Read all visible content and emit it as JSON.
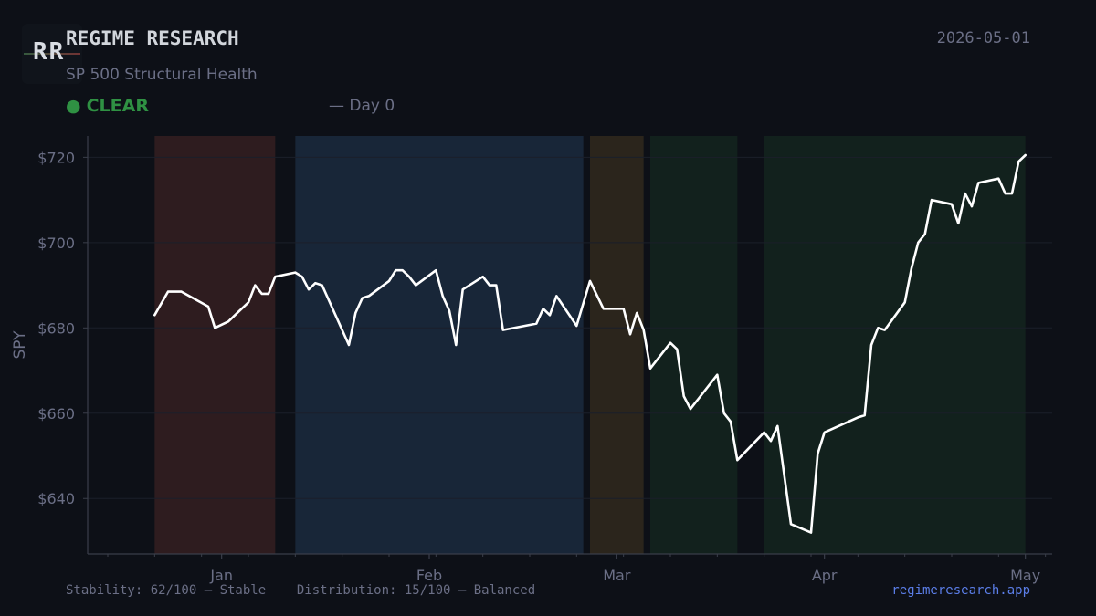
{
  "header": {
    "logo_text": "RR",
    "brand": "REGIME RESEARCH",
    "subtitle": "SP 500 Structural Health",
    "status_dot": "●",
    "status_label": "CLEAR",
    "day_label": "— Day 0",
    "date": "2026-05-01"
  },
  "footer": {
    "left": "Stability: 62/100 — Stable    Distribution: 15/100 — Balanced",
    "right": "regimeresearch.app"
  },
  "colors": {
    "background": "#0d1017",
    "line": "#ffffff",
    "status": "#2f9143",
    "link": "#5b7ee8",
    "regime_red": "#2e1c1f",
    "regime_blue": "#182638",
    "regime_amber": "#2b251c",
    "regime_green": "#12211d"
  },
  "chart_data": {
    "type": "line",
    "ylabel": "SPY",
    "xlabel": "",
    "ylim": [
      627,
      725
    ],
    "xlim": [
      "2025-12-12",
      "2026-05-05"
    ],
    "y_ticks": [
      640,
      660,
      680,
      700,
      720
    ],
    "y_tick_labels": [
      "$640",
      "$660",
      "$680",
      "$700",
      "$720"
    ],
    "x_ticks": [
      {
        "date": "2026-01-01",
        "label": "Jan"
      },
      {
        "date": "2026-02-01",
        "label": "Feb"
      },
      {
        "date": "2026-03-01",
        "label": "Mar"
      },
      {
        "date": "2026-04-01",
        "label": "Apr"
      },
      {
        "date": "2026-05-01",
        "label": "May"
      }
    ],
    "regimes": [
      {
        "start": "2025-12-22",
        "end": "2026-01-09",
        "color": "regime_red"
      },
      {
        "start": "2026-01-12",
        "end": "2026-02-24",
        "color": "regime_blue"
      },
      {
        "start": "2026-02-25",
        "end": "2026-03-05",
        "color": "regime_amber"
      },
      {
        "start": "2026-03-06",
        "end": "2026-03-19",
        "color": "regime_green"
      },
      {
        "start": "2026-03-23",
        "end": "2026-05-01",
        "color": "regime_green"
      }
    ],
    "series": [
      {
        "values": [
          {
            "x": "2025-12-22",
            "y": 683
          },
          {
            "x": "2025-12-24",
            "y": 688.5
          },
          {
            "x": "2025-12-26",
            "y": 688.5
          },
          {
            "x": "2025-12-30",
            "y": 685
          },
          {
            "x": "2025-12-31",
            "y": 680
          },
          {
            "x": "2026-01-02",
            "y": 681.5
          },
          {
            "x": "2026-01-05",
            "y": 686
          },
          {
            "x": "2026-01-06",
            "y": 690
          },
          {
            "x": "2026-01-07",
            "y": 688
          },
          {
            "x": "2026-01-08",
            "y": 688
          },
          {
            "x": "2026-01-09",
            "y": 692
          },
          {
            "x": "2026-01-12",
            "y": 693
          },
          {
            "x": "2026-01-13",
            "y": 692
          },
          {
            "x": "2026-01-14",
            "y": 689
          },
          {
            "x": "2026-01-15",
            "y": 690.5
          },
          {
            "x": "2026-01-16",
            "y": 690
          },
          {
            "x": "2026-01-20",
            "y": 676
          },
          {
            "x": "2026-01-21",
            "y": 683.5
          },
          {
            "x": "2026-01-22",
            "y": 687
          },
          {
            "x": "2026-01-23",
            "y": 687.5
          },
          {
            "x": "2026-01-26",
            "y": 691
          },
          {
            "x": "2026-01-27",
            "y": 693.5
          },
          {
            "x": "2026-01-28",
            "y": 693.5
          },
          {
            "x": "2026-01-29",
            "y": 692
          },
          {
            "x": "2026-01-30",
            "y": 690
          },
          {
            "x": "2026-02-02",
            "y": 693.5
          },
          {
            "x": "2026-02-03",
            "y": 687.5
          },
          {
            "x": "2026-02-04",
            "y": 684
          },
          {
            "x": "2026-02-05",
            "y": 676
          },
          {
            "x": "2026-02-06",
            "y": 689
          },
          {
            "x": "2026-02-09",
            "y": 692
          },
          {
            "x": "2026-02-10",
            "y": 690
          },
          {
            "x": "2026-02-11",
            "y": 690
          },
          {
            "x": "2026-02-12",
            "y": 679.5
          },
          {
            "x": "2026-02-17",
            "y": 681
          },
          {
            "x": "2026-02-18",
            "y": 684.5
          },
          {
            "x": "2026-02-19",
            "y": 683
          },
          {
            "x": "2026-02-20",
            "y": 687.5
          },
          {
            "x": "2026-02-23",
            "y": 680.5
          },
          {
            "x": "2026-02-25",
            "y": 691
          },
          {
            "x": "2026-02-27",
            "y": 684.5
          },
          {
            "x": "2026-03-02",
            "y": 684.5
          },
          {
            "x": "2026-03-03",
            "y": 678.5
          },
          {
            "x": "2026-03-04",
            "y": 683.5
          },
          {
            "x": "2026-03-05",
            "y": 679.5
          },
          {
            "x": "2026-03-06",
            "y": 670.5
          },
          {
            "x": "2026-03-09",
            "y": 676.5
          },
          {
            "x": "2026-03-10",
            "y": 675
          },
          {
            "x": "2026-03-11",
            "y": 664
          },
          {
            "x": "2026-03-12",
            "y": 661
          },
          {
            "x": "2026-03-16",
            "y": 669
          },
          {
            "x": "2026-03-17",
            "y": 660
          },
          {
            "x": "2026-03-18",
            "y": 658
          },
          {
            "x": "2026-03-19",
            "y": 649
          },
          {
            "x": "2026-03-23",
            "y": 655.5
          },
          {
            "x": "2026-03-24",
            "y": 653.5
          },
          {
            "x": "2026-03-25",
            "y": 657
          },
          {
            "x": "2026-03-27",
            "y": 634
          },
          {
            "x": "2026-03-30",
            "y": 632
          },
          {
            "x": "2026-03-31",
            "y": 650.5
          },
          {
            "x": "2026-04-01",
            "y": 655.5
          },
          {
            "x": "2026-04-06",
            "y": 659
          },
          {
            "x": "2026-04-07",
            "y": 659.5
          },
          {
            "x": "2026-04-08",
            "y": 676
          },
          {
            "x": "2026-04-09",
            "y": 680
          },
          {
            "x": "2026-04-10",
            "y": 679.5
          },
          {
            "x": "2026-04-13",
            "y": 686
          },
          {
            "x": "2026-04-14",
            "y": 694
          },
          {
            "x": "2026-04-15",
            "y": 700
          },
          {
            "x": "2026-04-16",
            "y": 702
          },
          {
            "x": "2026-04-17",
            "y": 710
          },
          {
            "x": "2026-04-20",
            "y": 709
          },
          {
            "x": "2026-04-21",
            "y": 704.5
          },
          {
            "x": "2026-04-22",
            "y": 711.5
          },
          {
            "x": "2026-04-23",
            "y": 708.5
          },
          {
            "x": "2026-04-24",
            "y": 714
          },
          {
            "x": "2026-04-27",
            "y": 715
          },
          {
            "x": "2026-04-28",
            "y": 711.5
          },
          {
            "x": "2026-04-29",
            "y": 711.5
          },
          {
            "x": "2026-04-30",
            "y": 719
          },
          {
            "x": "2026-05-01",
            "y": 720.5
          }
        ]
      }
    ]
  }
}
